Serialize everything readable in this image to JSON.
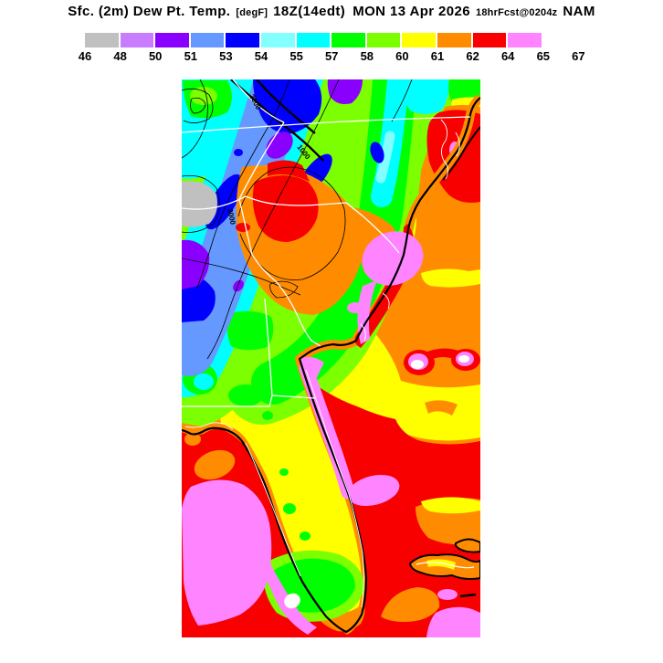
{
  "title": {
    "segments": [
      {
        "text": "Sfc. (2m) Dew Pt. Temp.",
        "size": "lg",
        "name": "product-name"
      },
      {
        "text": "[degF]",
        "size": "sm",
        "name": "units"
      },
      {
        "text": "18Z(14edt)",
        "size": "lg",
        "name": "valid-hour"
      },
      {
        "text": "MON 13 Apr 2026",
        "size": "lg",
        "name": "valid-date"
      },
      {
        "text": "18hrFcst@0204z",
        "size": "sm",
        "name": "forecast-info"
      },
      {
        "text": "NAM",
        "size": "lg",
        "name": "model-name"
      }
    ]
  },
  "legend": {
    "tick_labels": [
      "46",
      "48",
      "50",
      "51",
      "53",
      "54",
      "55",
      "57",
      "58",
      "60",
      "61",
      "62",
      "64",
      "65",
      "67"
    ],
    "bins": [
      {
        "from": 46,
        "to": 48,
        "color": "#c0c0c0"
      },
      {
        "from": 48,
        "to": 50,
        "color": "#c87cff"
      },
      {
        "from": 50,
        "to": 51,
        "color": "#8a00ff"
      },
      {
        "from": 51,
        "to": 53,
        "color": "#6699ff"
      },
      {
        "from": 53,
        "to": 54,
        "color": "#0000ff"
      },
      {
        "from": 54,
        "to": 55,
        "color": "#84ffff"
      },
      {
        "from": 55,
        "to": 57,
        "color": "#00ffff"
      },
      {
        "from": 57,
        "to": 58,
        "color": "#00ff00"
      },
      {
        "from": 58,
        "to": 60,
        "color": "#7cff00"
      },
      {
        "from": 60,
        "to": 61,
        "color": "#ffff00"
      },
      {
        "from": 61,
        "to": 62,
        "color": "#ff8c00"
      },
      {
        "from": 62,
        "to": 64,
        "color": "#f80000"
      },
      {
        "from": 64,
        "to": 65,
        "color": "#ff84ff"
      },
      {
        "from": 65,
        "to": 67,
        "color": "#ffffff"
      }
    ]
  },
  "palette": {
    "gray": "#c0c0c0",
    "lavender": "#c87cff",
    "purple": "#8a00ff",
    "cornflower": "#6699ff",
    "blue": "#0000ff",
    "palecyan": "#84ffff",
    "cyan": "#00ffff",
    "green": "#00ff00",
    "chartreuse": "#7cff00",
    "yellow": "#ffff00",
    "orange": "#ff8c00",
    "red": "#f80000",
    "pink": "#ff84ff",
    "white": "#ffffff"
  },
  "map": {
    "contour_labels": [
      "2000",
      "2000",
      "1000"
    ],
    "features": [
      {
        "name": "appalachian-cool-band",
        "dewpoint_f": "46-54",
        "colors": [
          "gray",
          "purple",
          "cornflower",
          "blue"
        ]
      },
      {
        "name": "piedmont-warm-core",
        "dewpoint_f": "61-64",
        "colors": [
          "orange",
          "red"
        ]
      },
      {
        "name": "inland-yellow-band",
        "dewpoint_f": "60-61",
        "colors": [
          "yellow"
        ]
      },
      {
        "name": "upper-diagonal-green-band",
        "dewpoint_f": "55-60",
        "colors": [
          "chartreuse",
          "green",
          "cyan"
        ]
      },
      {
        "name": "carolina-coast-red",
        "dewpoint_f": "62-64",
        "colors": [
          "red"
        ]
      },
      {
        "name": "offshore-pink-maxima",
        "dewpoint_f": "64-67",
        "colors": [
          "pink",
          "white"
        ]
      },
      {
        "name": "florida-peninsula",
        "dewpoint_f": "57-61",
        "colors": [
          "yellow",
          "green",
          "chartreuse"
        ]
      },
      {
        "name": "gulf-of-mexico",
        "dewpoint_f": "62-67",
        "colors": [
          "red",
          "pink",
          "white"
        ]
      },
      {
        "name": "atlantic-southeast",
        "dewpoint_f": "60-64",
        "colors": [
          "orange",
          "red",
          "yellow",
          "pink"
        ]
      }
    ]
  }
}
